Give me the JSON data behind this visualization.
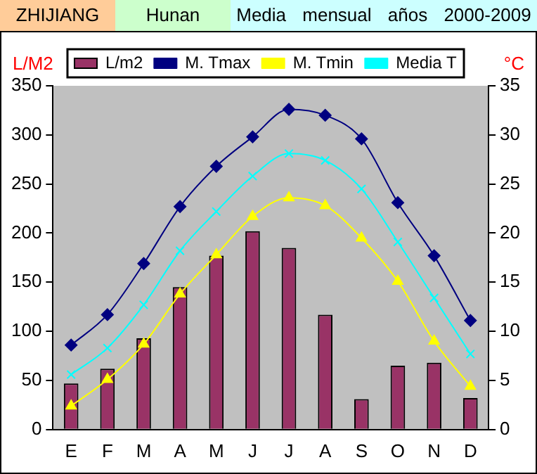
{
  "chart_data": {
    "type": "bar",
    "title": "ZHIJIANG",
    "subtitle": "Hunan",
    "annotations": [
      "Media mensual años 2000-2009"
    ],
    "ylabel": "L/M2",
    "y2label": "°C",
    "categories": [
      "E",
      "F",
      "M",
      "A",
      "M",
      "J",
      "J",
      "A",
      "S",
      "O",
      "N",
      "D"
    ],
    "series": [
      {
        "name": "L/m2",
        "color": "#993366",
        "values": [
          47,
          62,
          93,
          145,
          177,
          202,
          185,
          117,
          31,
          65,
          68,
          32
        ]
      },
      {
        "name": "M. Tmax",
        "type": "line",
        "axis": "y2",
        "marker": "diamond",
        "color": "#000080",
        "values": [
          8.6,
          11.7,
          16.9,
          22.7,
          26.8,
          29.8,
          32.6,
          32.0,
          29.6,
          23.1,
          17.7,
          11.1
        ]
      },
      {
        "name": "M. Tmin",
        "type": "line",
        "axis": "y2",
        "marker": "triangle",
        "color": "#ffff00",
        "values": [
          2.4,
          5.1,
          8.7,
          13.8,
          17.8,
          21.7,
          23.6,
          22.8,
          19.5,
          15.1,
          9.0,
          4.4
        ]
      },
      {
        "name": "Media T",
        "type": "line",
        "axis": "y2",
        "marker": "cross",
        "color": "#00ffff",
        "values": [
          5.6,
          8.3,
          12.7,
          18.2,
          22.2,
          25.8,
          28.1,
          27.4,
          24.5,
          19.1,
          13.4,
          7.7
        ]
      }
    ],
    "ylim": [
      0,
      350
    ],
    "yticks": [
      0,
      50,
      100,
      150,
      200,
      250,
      300,
      350
    ],
    "y2lim": [
      0,
      35
    ],
    "y2ticks": [
      0,
      5,
      10,
      15,
      20,
      25,
      30,
      35
    ],
    "grid": false,
    "legend": "top"
  }
}
